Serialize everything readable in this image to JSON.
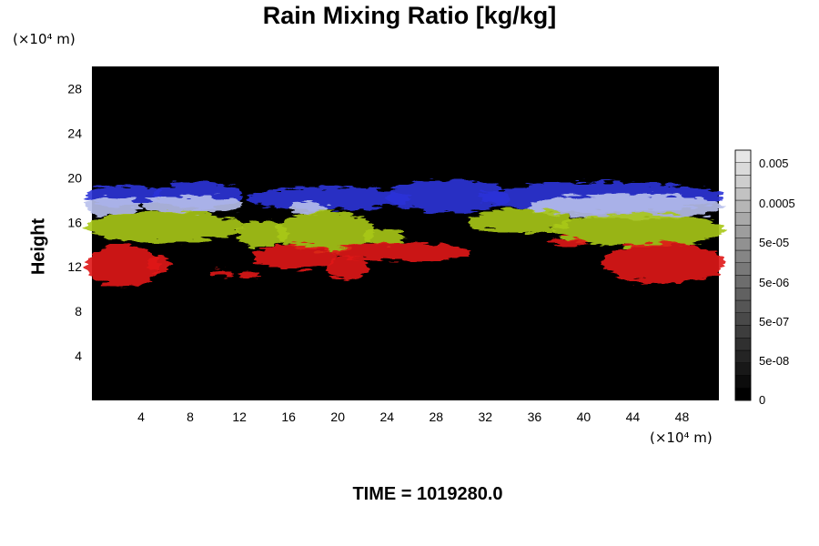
{
  "chart_data": {
    "type": "heatmap",
    "title": "Rain Mixing Ratio [kg/kg]",
    "ylabel": "Height",
    "xlabel": "",
    "x_unit": "(×10⁴ m)",
    "y_unit": "(×10⁴ m)",
    "xlim": [
      0,
      51
    ],
    "ylim": [
      0,
      30
    ],
    "x_ticks": [
      "4",
      "8",
      "12",
      "16",
      "20",
      "24",
      "28",
      "32",
      "36",
      "40",
      "44",
      "48"
    ],
    "y_ticks": [
      "4",
      "8",
      "12",
      "16",
      "20",
      "24",
      "28"
    ],
    "grid": false,
    "background_color": "#000000",
    "colorbar": {
      "placement": "right",
      "levels": 20,
      "labels": [
        "0",
        "5e-08",
        "5e-07",
        "5e-06",
        "5e-05",
        "0.0005",
        "0.005"
      ]
    },
    "layers": [
      {
        "color": "#e01818",
        "y_range": [
          10.5,
          14.5
        ]
      },
      {
        "color": "#a8c818",
        "y_range": [
          13.5,
          17.5
        ]
      },
      {
        "color": "#b8c0ec",
        "y_range": [
          16,
          18.5
        ]
      },
      {
        "color": "#2b33d8",
        "y_range": [
          17,
          19.8
        ]
      }
    ]
  },
  "footer": {
    "time_label": "TIME = 1019280.0"
  }
}
